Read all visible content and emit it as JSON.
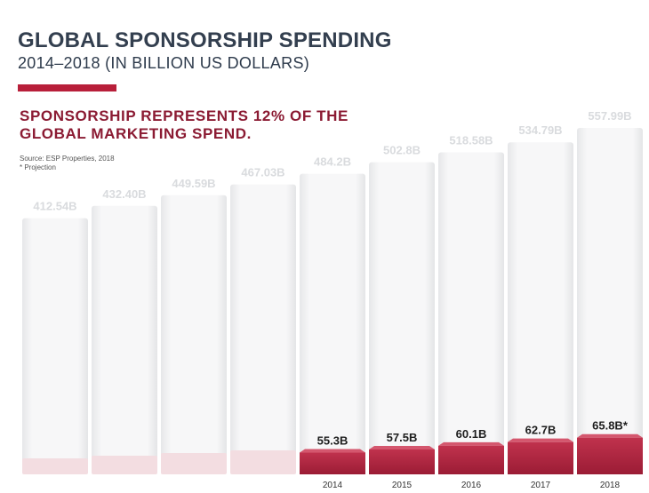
{
  "header": {
    "title": "GLOBAL SPONSORSHIP SPENDING",
    "subtitle": "2014–2018 (IN BILLION US DOLLARS)"
  },
  "headline": "SPONSORSHIP REPRESENTS 12% OF THE GLOBAL MARKETING SPEND.",
  "source": {
    "line1": "Source: ESP Properties, 2018",
    "line2": "* Projection"
  },
  "colors": {
    "accent": "#b81f3a",
    "bar_red": "#9b1c35",
    "bar_red_top": "#c0324d",
    "ghost": "#f1f1f2"
  },
  "chart_data": {
    "type": "bar",
    "title": "GLOBAL SPONSORSHIP SPENDING",
    "categories": [
      "",
      "",
      "",
      "",
      "2014",
      "2015",
      "2016",
      "2017",
      "2018"
    ],
    "series": [
      {
        "name": "Global marketing spend",
        "values": [
          412.54,
          432.4,
          449.59,
          467.03,
          484.2,
          502.8,
          518.58,
          534.79,
          557.99
        ],
        "labels": [
          "412.54B",
          "432.40B",
          "449.59B",
          "467.03B",
          "484.2B",
          "502.8B",
          "518.58B",
          "534.79B",
          "557.99B"
        ]
      },
      {
        "name": "Sponsorship spending",
        "values": [
          null,
          null,
          null,
          null,
          55.3,
          57.5,
          60.1,
          62.7,
          65.8
        ],
        "labels": [
          "",
          "",
          "",
          "",
          "55.3B",
          "57.5B",
          "60.1B",
          "62.7B",
          "65.8B*"
        ],
        "faded": [
          true,
          true,
          true,
          true,
          false,
          false,
          false,
          false,
          false
        ]
      }
    ]
  }
}
